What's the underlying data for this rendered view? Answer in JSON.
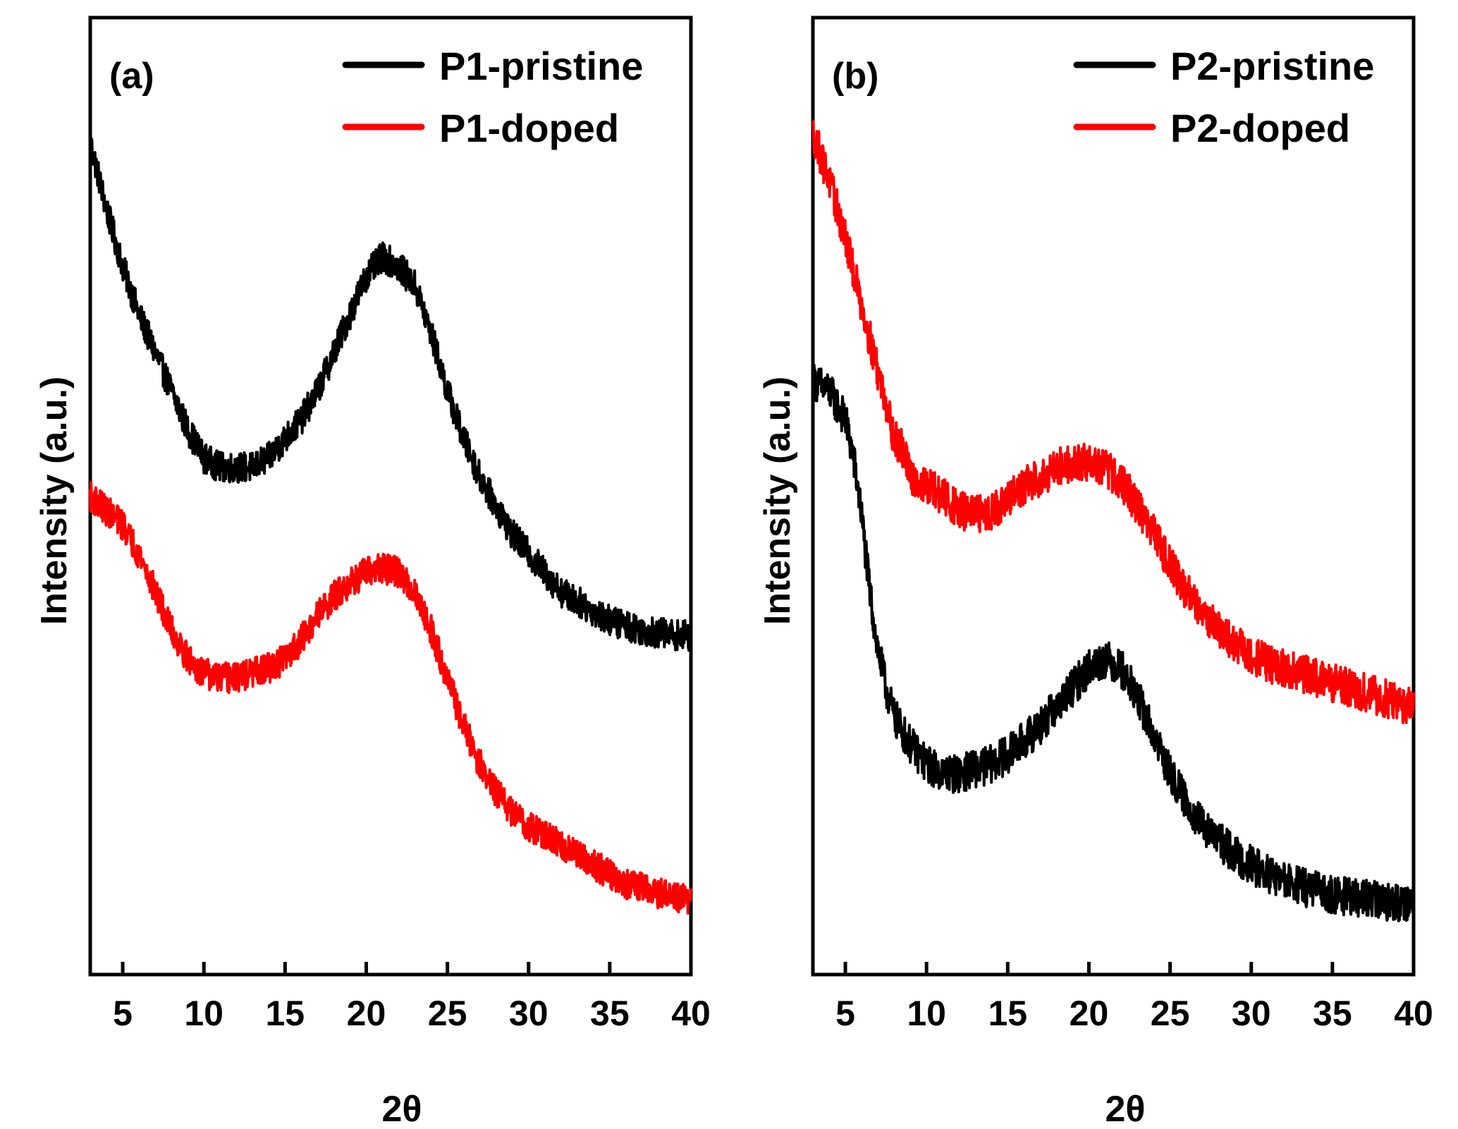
{
  "chart_data": [
    {
      "type": "line",
      "panel_label": "(a)",
      "xlabel": "2θ",
      "ylabel": "Intensity (a.u.)",
      "xlim": [
        3,
        40
      ],
      "ylim": [
        0,
        100
      ],
      "xticks": [
        5,
        10,
        15,
        20,
        25,
        30,
        35,
        40
      ],
      "yticks_shown": false,
      "legend_position": "top-right",
      "noise": 1.6,
      "series": [
        {
          "name": "P1-pristine",
          "color": "#000000",
          "x": [
            3,
            4,
            5,
            6,
            7,
            8,
            9,
            10,
            11,
            12,
            13,
            14,
            15,
            16,
            17,
            18,
            19,
            20,
            21,
            22,
            23,
            24,
            25,
            26,
            27,
            28,
            29,
            30,
            31,
            32,
            33,
            34,
            35,
            36,
            37,
            38,
            39,
            40
          ],
          "y": [
            87,
            80,
            74,
            69,
            65,
            61,
            57,
            54,
            53,
            53,
            53,
            54,
            56,
            58,
            61,
            65,
            69,
            73,
            75,
            74,
            72,
            67,
            61,
            56,
            52,
            49,
            46,
            44,
            42,
            40,
            39,
            38,
            37,
            36.5,
            36,
            35.7,
            35.5,
            35.4
          ]
        },
        {
          "name": "P1-doped",
          "color": "#ff0000",
          "x": [
            3,
            4,
            5,
            6,
            7,
            8,
            9,
            10,
            11,
            12,
            13,
            14,
            15,
            16,
            17,
            18,
            19,
            20,
            21,
            22,
            23,
            24,
            25,
            26,
            27,
            28,
            29,
            30,
            31,
            32,
            33,
            34,
            35,
            36,
            37,
            38,
            39,
            40
          ],
          "y": [
            50,
            48.5,
            47,
            44,
            40,
            36,
            33,
            31.5,
            31,
            31,
            31.5,
            32,
            33,
            35,
            37.5,
            39.5,
            41,
            42,
            42.5,
            42,
            40,
            36,
            31,
            26,
            22,
            19,
            17,
            15.5,
            14.5,
            13.5,
            12.5,
            11.5,
            10.5,
            9.5,
            9,
            8.5,
            8,
            7.8
          ]
        }
      ]
    },
    {
      "type": "line",
      "panel_label": "(b)",
      "xlabel": "2θ",
      "ylabel": "Intensity (a.u.)",
      "xlim": [
        3,
        40
      ],
      "ylim": [
        0,
        100
      ],
      "xticks": [
        5,
        10,
        15,
        20,
        25,
        30,
        35,
        40
      ],
      "yticks_shown": false,
      "legend_position": "top-right",
      "noise": 2.0,
      "series": [
        {
          "name": "P2-pristine",
          "color": "#000000",
          "x": [
            3,
            4,
            5,
            5.5,
            6,
            6.5,
            7,
            7.5,
            8,
            9,
            10,
            11,
            12,
            13,
            14,
            15,
            16,
            17,
            18,
            19,
            20,
            21,
            22,
            23,
            24,
            25,
            26,
            27,
            28,
            29,
            30,
            31,
            32,
            33,
            34,
            35,
            36,
            37,
            38,
            39,
            40
          ],
          "y": [
            62,
            61,
            58,
            54,
            48,
            40,
            34,
            30,
            27,
            24,
            22,
            21,
            21,
            21.5,
            22,
            23,
            24.5,
            26,
            28,
            30,
            32,
            33,
            32,
            29,
            25,
            21,
            18,
            15.5,
            14,
            12.5,
            11.5,
            10.5,
            9.8,
            9.2,
            8.8,
            8.4,
            8.1,
            7.9,
            7.7,
            7.6,
            7.6
          ]
        },
        {
          "name": "P2-doped",
          "color": "#ff0000",
          "x": [
            3,
            4,
            5,
            6,
            7,
            7.5,
            8,
            8.5,
            9,
            10,
            11,
            12,
            13,
            14,
            15,
            16,
            17,
            18,
            19,
            20,
            21,
            22,
            23,
            24,
            25,
            26,
            27,
            28,
            29,
            30,
            31,
            32,
            33,
            34,
            35,
            36,
            37,
            38,
            39,
            40
          ],
          "y": [
            88,
            83,
            77,
            70,
            63,
            60,
            56,
            55,
            52,
            51,
            50,
            48.5,
            48,
            48.5,
            49.5,
            51,
            52,
            53,
            53.5,
            53.5,
            53,
            51.5,
            49,
            46,
            43,
            40,
            38,
            36,
            34.5,
            33.5,
            32.5,
            32,
            31.5,
            31,
            30.5,
            30,
            29.5,
            29,
            28.5,
            28
          ]
        }
      ]
    }
  ]
}
